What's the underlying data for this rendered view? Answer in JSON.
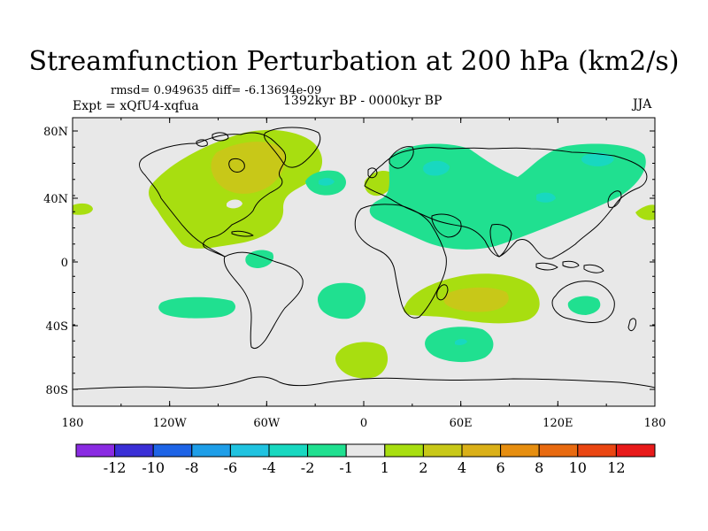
{
  "title": "Streamfunction Perturbation at 200 hPa (km2/s)",
  "stats": "rmsd= 0.949635 diff= -6.13694e-09",
  "experiment": "Expt = xQfU4-xqfua",
  "period": "1392kyr BP - 0000kyr BP",
  "season": "JJA",
  "axes": {
    "lat_ticks": [
      "80N",
      "40N",
      "0",
      "40S",
      "80S"
    ],
    "lon_ticks": [
      "180",
      "120W",
      "60W",
      "0",
      "60E",
      "120E",
      "180"
    ]
  },
  "colorbar": {
    "colors": [
      "#8a2be2",
      "#3a2fd6",
      "#1e64e6",
      "#1e9ee8",
      "#20c3e0",
      "#18d8c0",
      "#20e090",
      "#e8e8e8",
      "#a8de10",
      "#c8c818",
      "#dab018",
      "#e68e10",
      "#e86a10",
      "#ea4612",
      "#e81a1a"
    ],
    "labels": [
      "-12",
      "-10",
      "-8",
      "-6",
      "-4",
      "-2",
      "-1",
      "1",
      "2",
      "4",
      "6",
      "8",
      "10",
      "12"
    ]
  },
  "colors": {
    "land_background": "#e8e8e8",
    "pos_1_2": "#a8de10",
    "pos_2_4": "#c8c818",
    "neg_1_2": "#20e090",
    "neg_2_4": "#18d8c0"
  }
}
